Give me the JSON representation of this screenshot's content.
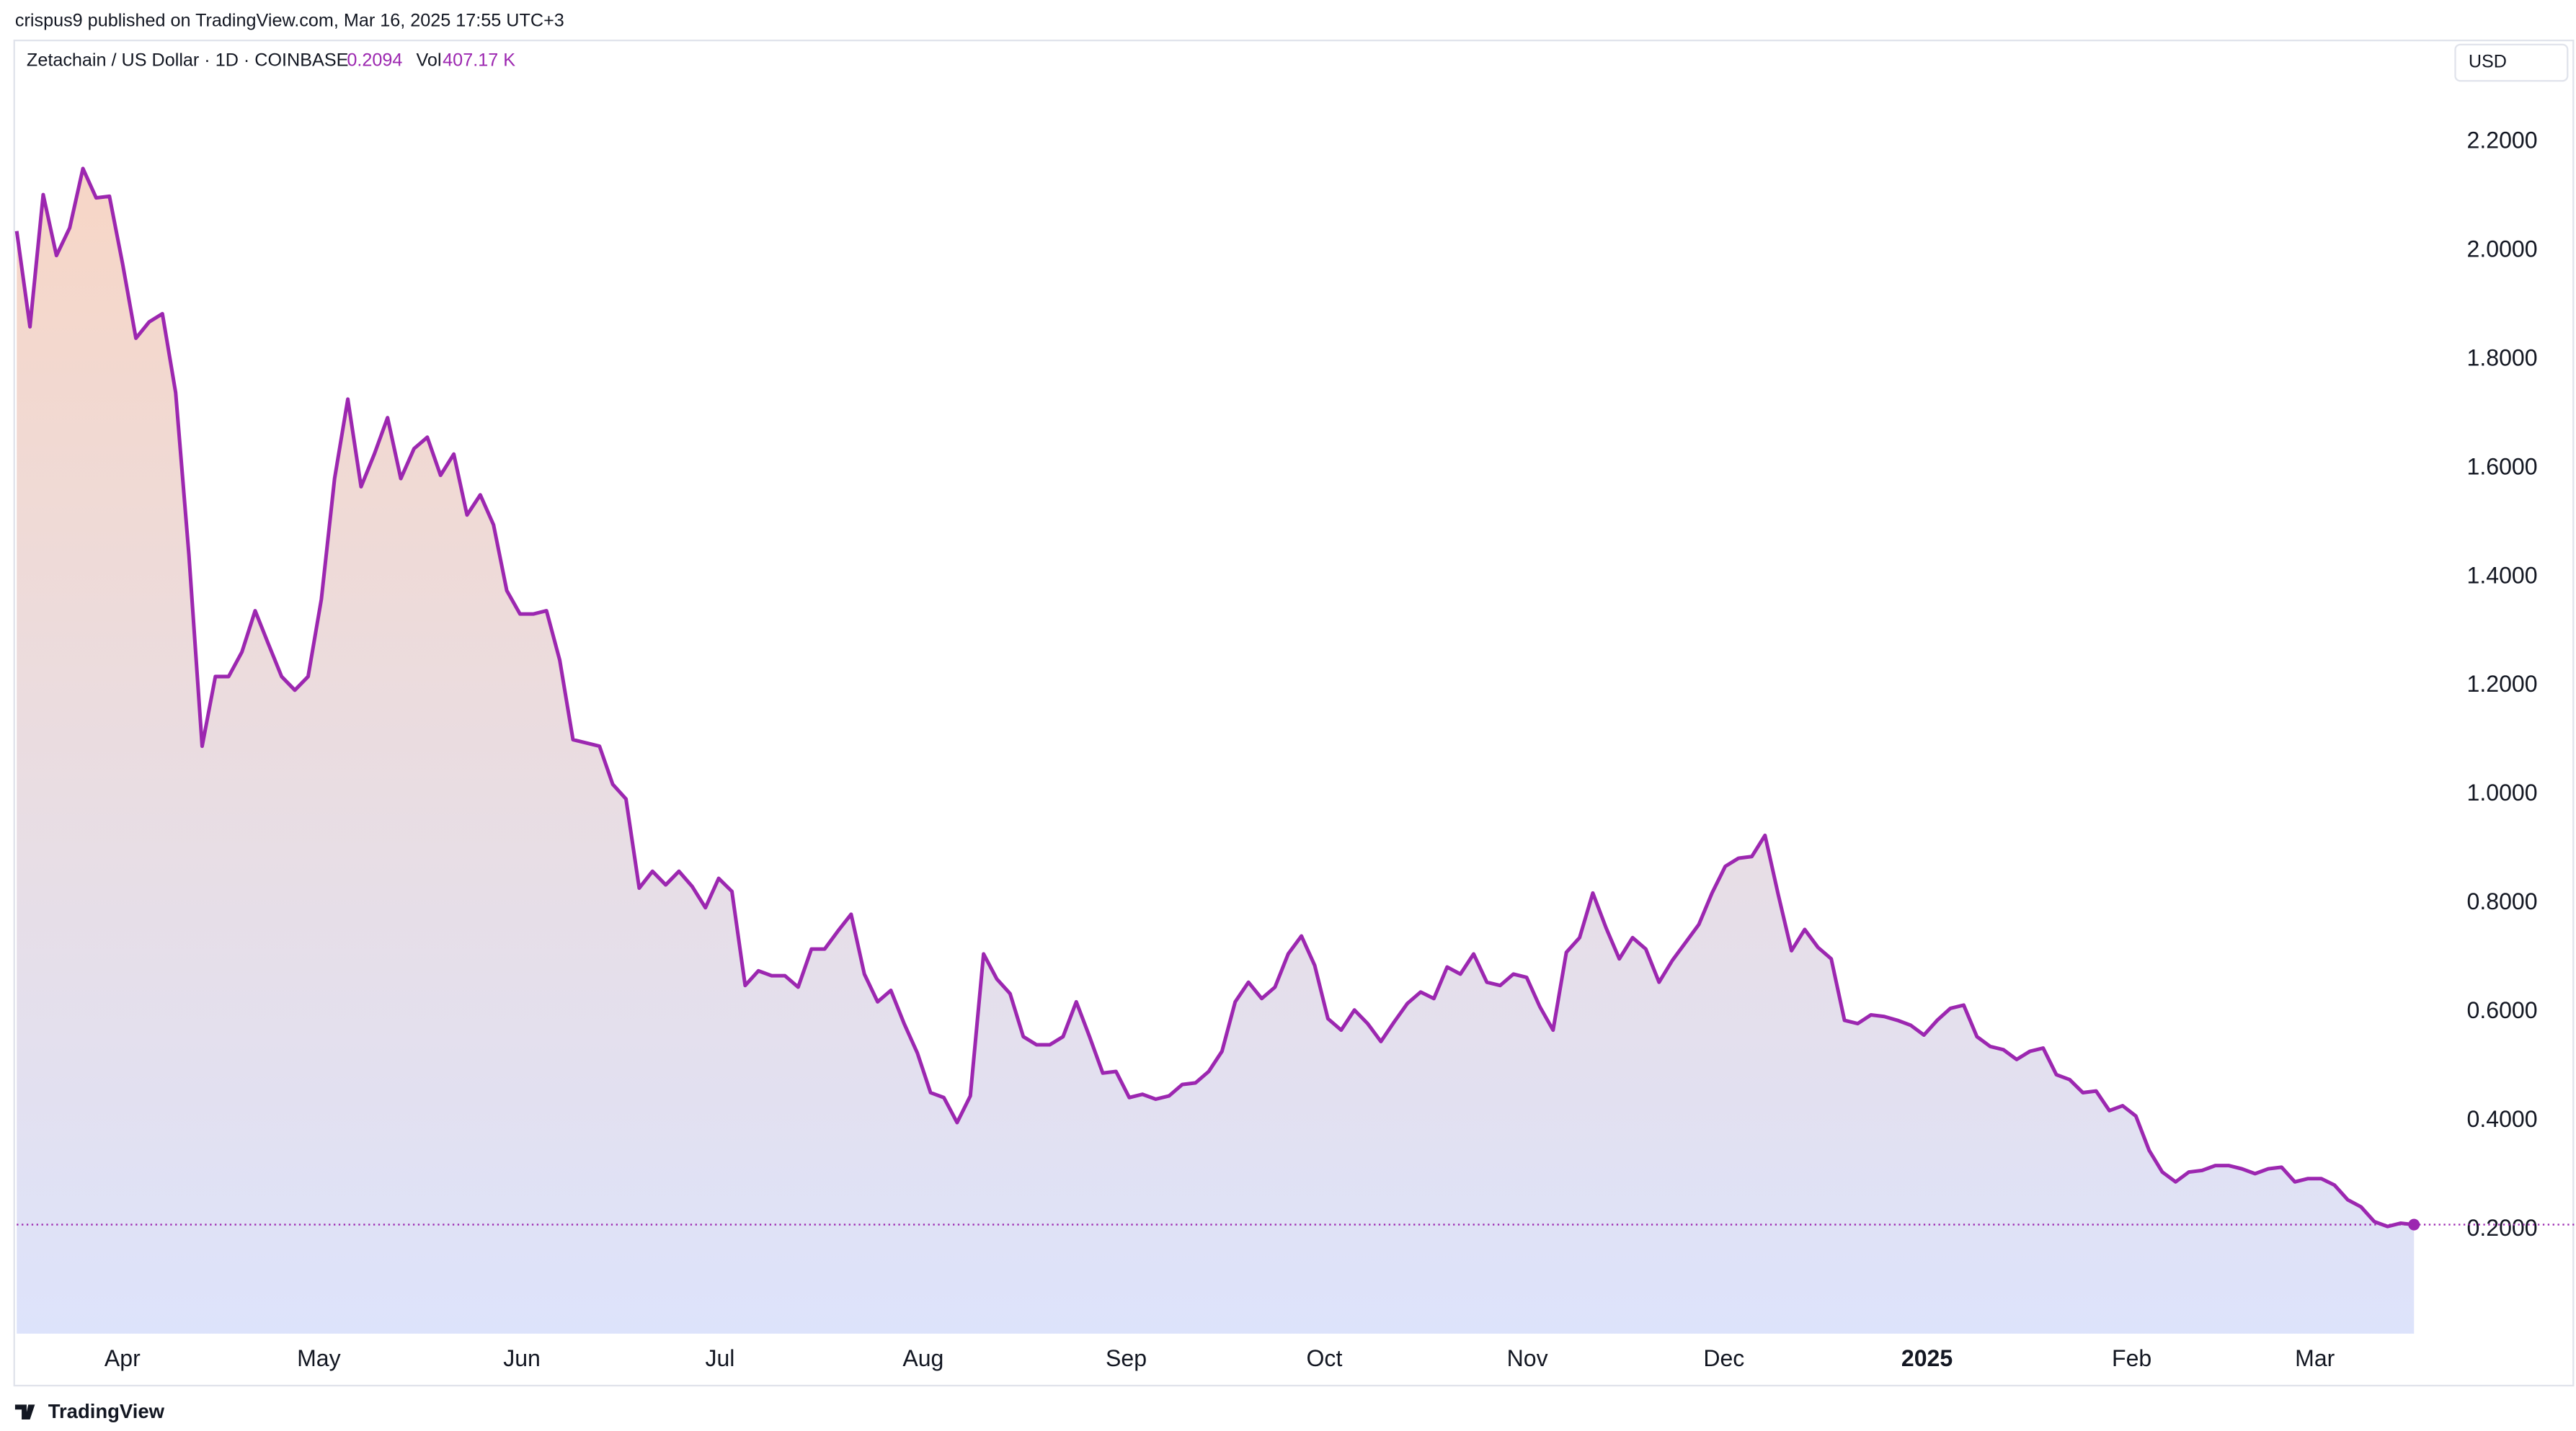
{
  "header": {
    "publisher": "crispus9 published on TradingView.com, Mar 16, 2025 17:55 UTC+3",
    "logo": "TradingView"
  },
  "chart_data": {
    "type": "area",
    "title": "Zetachain / US Dollar · 1D · COINBASE",
    "volume_label": "Vol",
    "volume": "407.17 K",
    "currency": "USD",
    "color": "#9c27b0",
    "fill_top": "#f7d6c6",
    "fill_bottom": "#dde3fb",
    "last_value_line": true,
    "values": [
      2.036,
      1.86,
      2.103,
      1.991,
      2.042,
      2.151,
      2.097,
      2.1,
      1.975,
      1.839,
      1.869,
      1.884,
      1.739,
      1.441,
      1.089,
      1.217,
      1.217,
      1.262,
      1.338,
      1.277,
      1.217,
      1.192,
      1.217,
      1.359,
      1.581,
      1.727,
      1.566,
      1.626,
      1.693,
      1.581,
      1.636,
      1.657,
      1.587,
      1.626,
      1.514,
      1.551,
      1.496,
      1.375,
      1.332,
      1.332,
      1.338,
      1.247,
      1.101,
      1.095,
      1.089,
      1.019,
      0.992,
      0.828,
      0.859,
      0.834,
      0.859,
      0.831,
      0.792,
      0.846,
      0.822,
      0.649,
      0.676,
      0.667,
      0.667,
      0.646,
      0.716,
      0.716,
      0.749,
      0.78,
      0.67,
      0.619,
      0.64,
      0.579,
      0.525,
      0.452,
      0.443,
      0.397,
      0.446,
      0.707,
      0.661,
      0.634,
      0.555,
      0.54,
      0.54,
      0.555,
      0.619,
      0.555,
      0.488,
      0.491,
      0.443,
      0.449,
      0.44,
      0.446,
      0.467,
      0.47,
      0.491,
      0.528,
      0.619,
      0.655,
      0.625,
      0.646,
      0.707,
      0.74,
      0.686,
      0.588,
      0.567,
      0.604,
      0.579,
      0.546,
      0.582,
      0.616,
      0.637,
      0.625,
      0.683,
      0.67,
      0.707,
      0.655,
      0.649,
      0.67,
      0.664,
      0.61,
      0.567,
      0.71,
      0.737,
      0.819,
      0.755,
      0.698,
      0.737,
      0.716,
      0.655,
      0.695,
      0.728,
      0.761,
      0.819,
      0.868,
      0.883,
      0.886,
      0.925,
      0.816,
      0.713,
      0.752,
      0.719,
      0.698,
      0.585,
      0.579,
      0.595,
      0.592,
      0.585,
      0.576,
      0.558,
      0.585,
      0.607,
      0.613,
      0.555,
      0.537,
      0.531,
      0.513,
      0.528,
      0.534,
      0.485,
      0.476,
      0.452,
      0.455,
      0.419,
      0.428,
      0.409,
      0.346,
      0.306,
      0.288,
      0.306,
      0.309,
      0.318,
      0.318,
      0.312,
      0.303,
      0.312,
      0.315,
      0.288,
      0.294,
      0.294,
      0.282,
      0.255,
      0.242,
      0.215,
      0.206,
      0.212,
      0.2094
    ],
    "xlim": [
      0,
      181
    ],
    "xticks": [
      {
        "value": 7.98,
        "label": "Apr"
      },
      {
        "value": 22.81,
        "label": "May"
      },
      {
        "value": 38.14,
        "label": "Jun"
      },
      {
        "value": 53.1,
        "label": "Jul"
      },
      {
        "value": 68.44,
        "label": "Aug"
      },
      {
        "value": 83.77,
        "label": "Sep"
      },
      {
        "value": 98.73,
        "label": "Oct"
      },
      {
        "value": 114.06,
        "label": "Nov"
      },
      {
        "value": 128.9,
        "label": "Dec"
      },
      {
        "value": 144.23,
        "label": "2025"
      },
      {
        "value": 159.69,
        "label": "Feb"
      },
      {
        "value": 173.52,
        "label": "Mar"
      }
    ],
    "ylim": [
      0.009,
      2.388
    ],
    "yticks": [
      {
        "value": 0.2,
        "label": "0.2000"
      },
      {
        "value": 0.4,
        "label": "0.4000"
      },
      {
        "value": 0.6,
        "label": "0.6000"
      },
      {
        "value": 0.8,
        "label": "0.8000"
      },
      {
        "value": 1,
        "label": "1.0000"
      },
      {
        "value": 1.2,
        "label": "1.2000"
      },
      {
        "value": 1.4,
        "label": "1.4000"
      },
      {
        "value": 1.6,
        "label": "1.6000"
      },
      {
        "value": 1.8,
        "label": "1.8000"
      },
      {
        "value": 2,
        "label": "2.0000"
      },
      {
        "value": 2.2,
        "label": "2.2000"
      }
    ]
  }
}
